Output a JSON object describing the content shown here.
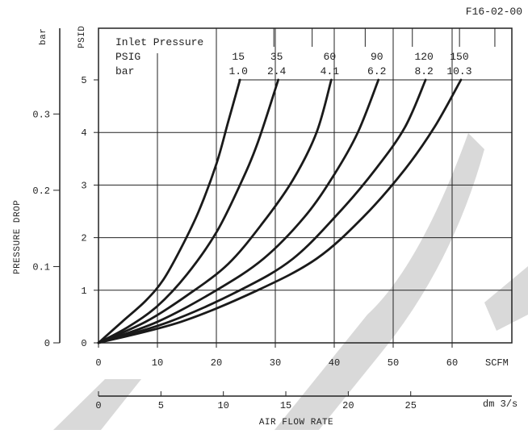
{
  "chart_data": {
    "type": "line",
    "code": "F16-02-00",
    "ylabel": "PRESSURE DROP",
    "y_units_psid": "PSID",
    "y_units_bar": "bar",
    "xlabel": "AIR FLOW RATE",
    "x_units_scfm": "SCFM",
    "x_units_metric": "dm 3/s",
    "legend_title": "Inlet Pressure",
    "legend_psig_label": "PSIG",
    "legend_bar_label": "bar",
    "xlim_scfm": [
      0,
      70
    ],
    "ylim_psid": [
      0,
      5.5
    ],
    "x_ticks_scfm": [
      "0",
      "10",
      "20",
      "30",
      "40",
      "50",
      "60"
    ],
    "y_ticks_psid": [
      "0",
      "1",
      "2",
      "3",
      "4",
      "5"
    ],
    "x_ticks_dm3s": [
      "0",
      "5",
      "10",
      "15",
      "20",
      "25"
    ],
    "y_ticks_bar": [
      "0",
      "0.1",
      "0.2",
      "0.3"
    ],
    "grid": true,
    "series": [
      {
        "psig": "15",
        "bar": "1.0",
        "x_scfm": [
          0,
          4,
          8,
          11,
          14,
          17,
          20,
          22,
          24
        ],
        "y_psid": [
          0,
          0.4,
          0.8,
          1.2,
          1.8,
          2.5,
          3.4,
          4.2,
          5.0
        ]
      },
      {
        "psig": "35",
        "bar": "2.4",
        "x_scfm": [
          0,
          5,
          10,
          15,
          20,
          24,
          27,
          30.5
        ],
        "y_psid": [
          0,
          0.3,
          0.7,
          1.3,
          2.1,
          3.0,
          3.8,
          5.0
        ]
      },
      {
        "psig": "60",
        "bar": "4.1",
        "x_scfm": [
          0,
          8,
          15,
          22,
          28,
          33,
          37,
          39.5
        ],
        "y_psid": [
          0,
          0.4,
          0.9,
          1.5,
          2.3,
          3.1,
          4.0,
          5.0
        ]
      },
      {
        "psig": "90",
        "bar": "6.2",
        "x_scfm": [
          0,
          10,
          20,
          28,
          35,
          40,
          44,
          47.5
        ],
        "y_psid": [
          0,
          0.4,
          1.0,
          1.6,
          2.4,
          3.2,
          4.0,
          5.0
        ]
      },
      {
        "psig": "120",
        "bar": "8.2",
        "x_scfm": [
          0,
          12,
          24,
          33,
          41,
          47,
          52,
          55.5
        ],
        "y_psid": [
          0,
          0.4,
          1.0,
          1.6,
          2.5,
          3.3,
          4.1,
          5.0
        ]
      },
      {
        "psig": "150",
        "bar": "10.3",
        "x_scfm": [
          0,
          14,
          27,
          37,
          45,
          52,
          57,
          61.5
        ],
        "y_psid": [
          0,
          0.4,
          1.0,
          1.6,
          2.4,
          3.3,
          4.1,
          5.0
        ]
      }
    ],
    "colors": {
      "curve": "#1a1a1a",
      "grid": "#222222",
      "watermark": "#d9d9d9"
    }
  }
}
